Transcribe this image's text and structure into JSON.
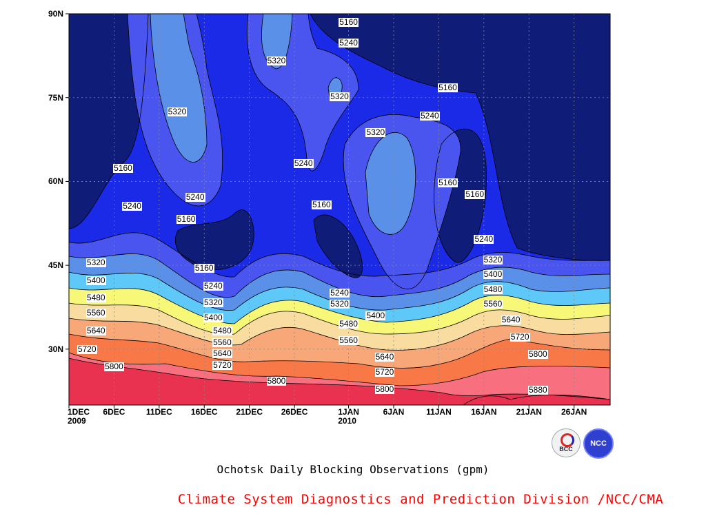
{
  "chart_data": {
    "type": "heatmap",
    "title": "Ochotsk Daily Blocking Observations (gpm)",
    "credit": "Climate System Diagnostics and Prediction Division /NCC/CMA",
    "xlabel": "",
    "ylabel": "",
    "x_start": "2009-12-01",
    "x_end": "2010-01-30",
    "ylim": [
      20,
      90
    ],
    "y_ticks": [
      "90N",
      "75N",
      "60N",
      "45N",
      "30N"
    ],
    "x_ticks": [
      {
        "label": "1DEC\n2009",
        "date": "2009-12-01"
      },
      {
        "label": "6DEC",
        "date": "2009-12-06"
      },
      {
        "label": "11DEC",
        "date": "2009-12-11"
      },
      {
        "label": "16DEC",
        "date": "2009-12-16"
      },
      {
        "label": "21DEC",
        "date": "2009-12-21"
      },
      {
        "label": "26DEC",
        "date": "2009-12-26"
      },
      {
        "label": "1JAN\n2010",
        "date": "2010-01-01"
      },
      {
        "label": "6JAN",
        "date": "2010-01-06"
      },
      {
        "label": "11JAN",
        "date": "2010-01-11"
      },
      {
        "label": "16JAN",
        "date": "2010-01-16"
      },
      {
        "label": "21JAN",
        "date": "2010-01-21"
      },
      {
        "label": "26JAN",
        "date": "2010-01-26"
      }
    ],
    "grid": true,
    "contour_levels": [
      5160,
      5240,
      5320,
      5400,
      5480,
      5560,
      5640,
      5720,
      5800,
      5880
    ],
    "fill_colors": [
      "#0f1c78",
      "#1a2ae6",
      "#4a55f0",
      "#5a90e8",
      "#5ec8f8",
      "#f8f878",
      "#f8dca0",
      "#f8a878",
      "#f87848",
      "#f87080",
      "#e83250"
    ],
    "contour_labels": [
      {
        "text": "5160",
        "date": "2009-12-07",
        "lat": 62.3
      },
      {
        "text": "5240",
        "date": "2009-12-08",
        "lat": 55.5
      },
      {
        "text": "5320",
        "date": "2009-12-13",
        "lat": 72.4
      },
      {
        "text": "5240",
        "date": "2009-12-15",
        "lat": 57.2
      },
      {
        "text": "5160",
        "date": "2009-12-14",
        "lat": 53.2
      },
      {
        "text": "5320",
        "date": "2009-12-24",
        "lat": 81.5
      },
      {
        "text": "5160",
        "date": "2010-01-01",
        "lat": 88.4
      },
      {
        "text": "5240",
        "date": "2010-01-01",
        "lat": 84.8
      },
      {
        "text": "5320",
        "date": "2009-12-31",
        "lat": 75.1
      },
      {
        "text": "5240",
        "date": "2009-12-27",
        "lat": 63.2
      },
      {
        "text": "5160",
        "date": "2009-12-29",
        "lat": 55.8
      },
      {
        "text": "5320",
        "date": "2010-01-04",
        "lat": 68.7
      },
      {
        "text": "5160",
        "date": "2010-01-12",
        "lat": 76.8
      },
      {
        "text": "5240",
        "date": "2010-01-10",
        "lat": 71.7
      },
      {
        "text": "5160",
        "date": "2010-01-12",
        "lat": 59.8
      },
      {
        "text": "5160",
        "date": "2010-01-15",
        "lat": 57.6
      },
      {
        "text": "5240",
        "date": "2010-01-16",
        "lat": 49.6
      },
      {
        "text": "5320",
        "date": "2009-12-04",
        "lat": 45.5
      },
      {
        "text": "5400",
        "date": "2009-12-04",
        "lat": 42.3
      },
      {
        "text": "5480",
        "date": "2009-12-04",
        "lat": 39.2
      },
      {
        "text": "5560",
        "date": "2009-12-04",
        "lat": 36.5
      },
      {
        "text": "5640",
        "date": "2009-12-04",
        "lat": 33.2
      },
      {
        "text": "5720",
        "date": "2009-12-03",
        "lat": 29.9
      },
      {
        "text": "5800",
        "date": "2009-12-06",
        "lat": 26.8
      },
      {
        "text": "5160",
        "date": "2009-12-16",
        "lat": 44.5
      },
      {
        "text": "5240",
        "date": "2009-12-17",
        "lat": 41.2
      },
      {
        "text": "5320",
        "date": "2009-12-17",
        "lat": 38.3
      },
      {
        "text": "5400",
        "date": "2009-12-17",
        "lat": 35.6
      },
      {
        "text": "5480",
        "date": "2009-12-18",
        "lat": 33.3
      },
      {
        "text": "5560",
        "date": "2009-12-18",
        "lat": 31.2
      },
      {
        "text": "5640",
        "date": "2009-12-18",
        "lat": 29.2
      },
      {
        "text": "5720",
        "date": "2009-12-18",
        "lat": 27.1
      },
      {
        "text": "5800",
        "date": "2009-12-24",
        "lat": 24.2
      },
      {
        "text": "5240",
        "date": "2009-12-31",
        "lat": 40.0
      },
      {
        "text": "5320",
        "date": "2009-12-31",
        "lat": 38.0
      },
      {
        "text": "5480",
        "date": "2010-01-01",
        "lat": 34.5
      },
      {
        "text": "5400",
        "date": "2010-01-04",
        "lat": 35.9
      },
      {
        "text": "5560",
        "date": "2010-01-01",
        "lat": 31.5
      },
      {
        "text": "5640",
        "date": "2010-01-05",
        "lat": 28.6
      },
      {
        "text": "5720",
        "date": "2010-01-05",
        "lat": 25.8
      },
      {
        "text": "5800",
        "date": "2010-01-05",
        "lat": 22.8
      },
      {
        "text": "5320",
        "date": "2010-01-17",
        "lat": 45.9
      },
      {
        "text": "5400",
        "date": "2010-01-17",
        "lat": 43.3
      },
      {
        "text": "5480",
        "date": "2010-01-17",
        "lat": 40.7
      },
      {
        "text": "5560",
        "date": "2010-01-17",
        "lat": 38.1
      },
      {
        "text": "5640",
        "date": "2010-01-19",
        "lat": 35.2
      },
      {
        "text": "5720",
        "date": "2010-01-20",
        "lat": 32.2
      },
      {
        "text": "5800",
        "date": "2010-01-22",
        "lat": 29.0
      },
      {
        "text": "5880",
        "date": "2010-01-22",
        "lat": 22.7
      }
    ]
  },
  "logos": {
    "bcc_text": "BCC",
    "ncc_text": "NCC"
  }
}
